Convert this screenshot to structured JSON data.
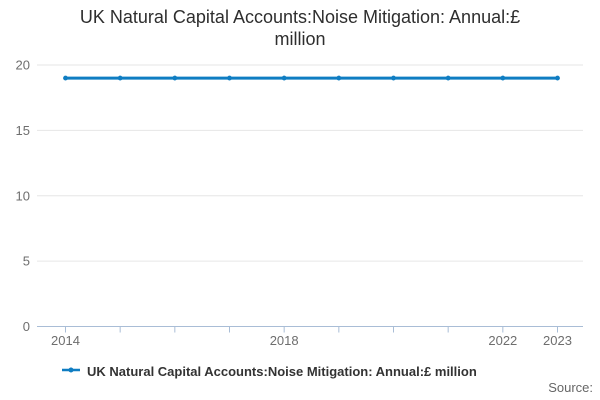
{
  "header": {
    "title": "UK Natural Capital Accounts:Noise Mitigation: Annual:£ million"
  },
  "legend": {
    "label": "UK Natural Capital Accounts:Noise Mitigation: Annual:£ million"
  },
  "footer": {
    "source": "Source:"
  },
  "colors": {
    "line": "#0f7dc2",
    "grid": "#e6e6e6",
    "axis": "#a9bdd6",
    "tick_text": "#6e6e6e",
    "title_text": "#2e2e2e",
    "legend_text": "#333333",
    "source_text": "#666666"
  },
  "chart_data": {
    "type": "line",
    "title": "UK Natural Capital Accounts:Noise Mitigation: Annual:£ million",
    "x": [
      2014,
      2015,
      2016,
      2017,
      2018,
      2019,
      2020,
      2021,
      2022,
      2023
    ],
    "series": [
      {
        "name": "UK Natural Capital Accounts:Noise Mitigation: Annual:£ million",
        "values": [
          19,
          19,
          19,
          19,
          19,
          19,
          19,
          19,
          19,
          19
        ]
      }
    ],
    "xlabel": "",
    "ylabel": "",
    "ylim": [
      0,
      20
    ],
    "yticks": [
      0,
      5,
      10,
      15,
      20
    ],
    "xticks_labeled": [
      2014,
      2018,
      2022,
      2023
    ],
    "grid": "horizontal",
    "legend_position": "bottom",
    "marker": "dot"
  }
}
